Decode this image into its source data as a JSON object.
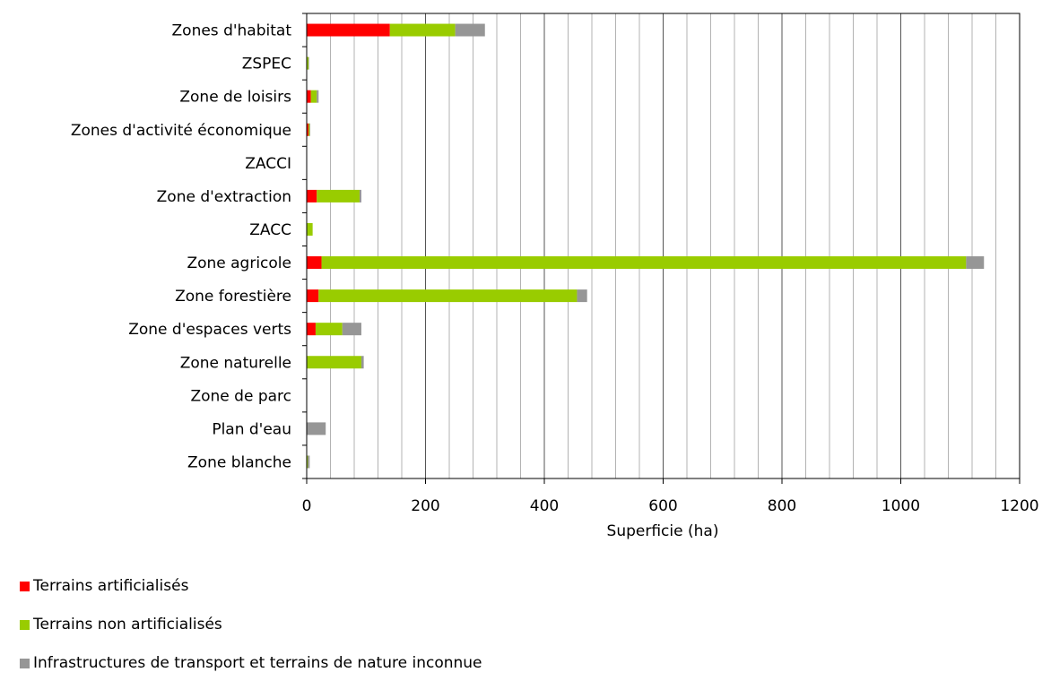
{
  "chart_data": {
    "type": "bar",
    "orientation": "horizontal",
    "stacked": true,
    "title": "",
    "xlabel": "Superficie (ha)",
    "ylabel": "",
    "xlim": [
      0,
      1200
    ],
    "x_ticks": [
      0,
      200,
      400,
      600,
      800,
      1000,
      1200
    ],
    "grid": "vertical",
    "legend_position": "bottom-left",
    "categories": [
      "Zones d'habitat",
      "ZSPEC",
      "Zone de loisirs",
      "Zones d'activité économique",
      "ZACCI",
      "Zone d'extraction",
      "ZACC",
      "Zone agricole",
      "Zone forestière",
      "Zone d'espaces verts",
      "Zone naturelle",
      "Zone de parc",
      "Plan d'eau",
      "Zone blanche"
    ],
    "series": [
      {
        "name": "Terrains artificialisés",
        "color": "#ff0000",
        "values": [
          140,
          0,
          7,
          3,
          0,
          17,
          0,
          25,
          20,
          15,
          0,
          0,
          0,
          0
        ]
      },
      {
        "name": "Terrains non artificialisés",
        "color": "#99cc00",
        "values": [
          110,
          3,
          10,
          2,
          0,
          72,
          10,
          1085,
          435,
          45,
          92,
          0,
          0,
          2
        ]
      },
      {
        "name": "Infrastructures de transport et terrains de nature inconnue",
        "color": "#969696",
        "values": [
          50,
          1,
          3,
          1,
          0,
          3,
          0,
          30,
          17,
          32,
          4,
          0,
          32,
          3
        ]
      }
    ]
  }
}
